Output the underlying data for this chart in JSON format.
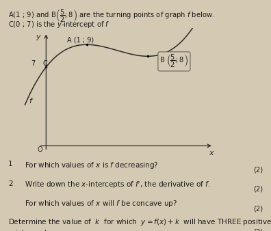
{
  "bg_color": "#d4c9b2",
  "curve_color": "#2a2a2a",
  "axes_color": "#2a2a2a",
  "text_color": "#1a1a1a",
  "q1_text": "For which values of $x$ is $f$ decreasing?",
  "q2_text": "Write down the $x$-intercepts of $f'$, the derivative of $f$.",
  "q3_text": "For which values of $x$ will $f$ be concave up?",
  "q4_text": "Determine the value of  $k$  for which  $y = f(x) + k$  will have THREE positive\n$x$-intercepts.",
  "marks": "(2)",
  "header1": "A(1 ; 9) and B$\\left(\\dfrac{5}{2};8\\right)$ are the turning points of graph $f$ below.",
  "header2": "C(0 ; 7) is the $y$-intercept of $f$",
  "a_coeff": 0.6153846153846154,
  "b_coeff": -3.230769230769231,
  "c_coeff": 4.615384615384615,
  "d_coeff": 7.0,
  "x_data_min": -0.6,
  "x_data_max": 4.2,
  "y_data_min": -0.8,
  "y_data_max": 10.5
}
